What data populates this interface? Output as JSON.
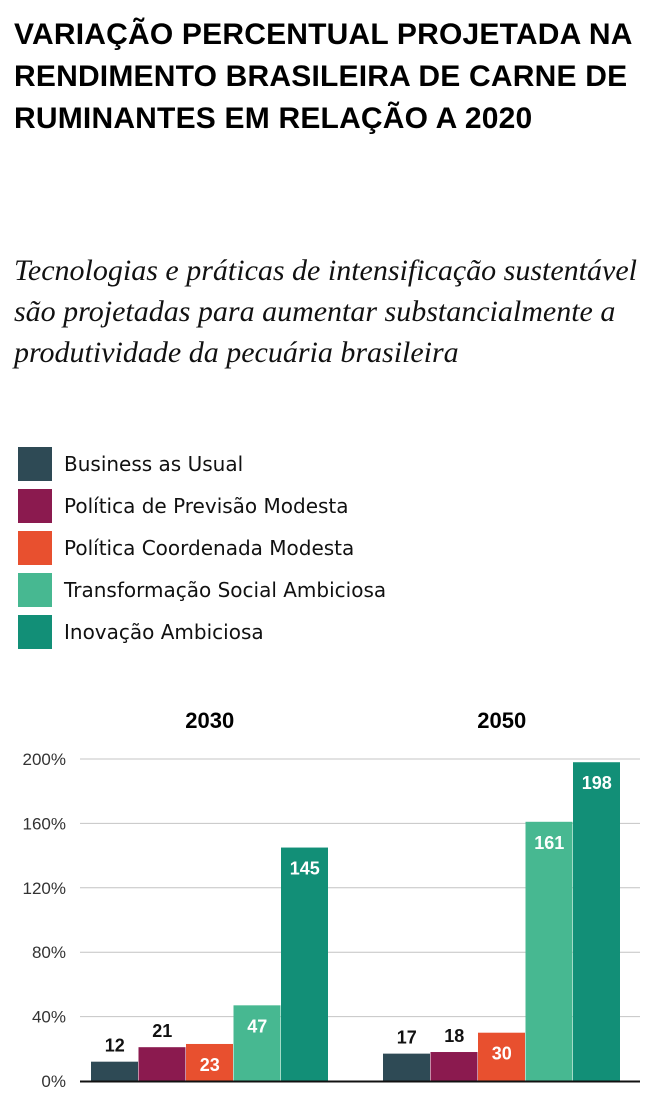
{
  "title": "VARIAÇÃO PERCENTUAL PROJETADA NA RENDIMENTO BRASILEIRA DE CARNE DE RUMINANTES EM RELAÇÃO A 2020",
  "subtitle": "Tecnologias e práticas de intensificação sustentável são projetadas para aumentar substancialmente a produtividade da pecuária brasileira",
  "chart_data": {
    "type": "bar",
    "categories": [
      "2030",
      "2050"
    ],
    "series": [
      {
        "name": "Business as Usual",
        "color": "#2e4a55",
        "values": [
          12,
          17
        ]
      },
      {
        "name": "Política de Previsão Modesta",
        "color": "#8b1a4f",
        "values": [
          21,
          18
        ]
      },
      {
        "name": "Política Coordenada Modesta",
        "color": "#e8502f",
        "values": [
          23,
          30
        ]
      },
      {
        "name": "Transformação Social Ambiciosa",
        "color": "#47b891",
        "values": [
          47,
          161
        ]
      },
      {
        "name": "Inovação Ambiciosa",
        "color": "#128f77",
        "values": [
          145,
          198
        ]
      }
    ],
    "yticks": [
      "0%",
      "40%",
      "80%",
      "120%",
      "160%",
      "200%"
    ],
    "ylim": [
      0,
      200
    ],
    "grid": true,
    "legend_position": "top-left"
  }
}
